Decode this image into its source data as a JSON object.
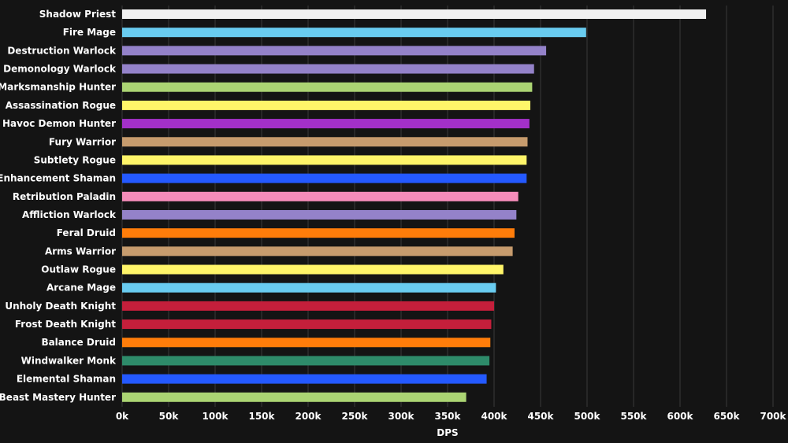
{
  "chart_data": {
    "type": "bar",
    "orientation": "horizontal",
    "title": "",
    "xlabel": "DPS",
    "ylabel": "",
    "xlim": [
      0,
      700000
    ],
    "grid": true,
    "legend": "none",
    "x_ticks": [
      "0k",
      "50k",
      "100k",
      "150k",
      "200k",
      "250k",
      "300k",
      "350k",
      "400k",
      "450k",
      "500k",
      "550k",
      "600k",
      "650k",
      "700k"
    ],
    "categories": [
      "Shadow Priest",
      "Fire Mage",
      "Destruction Warlock",
      "Demonology Warlock",
      "Marksmanship Hunter",
      "Assassination Rogue",
      "Havoc Demon Hunter",
      "Fury Warrior",
      "Subtlety Rogue",
      "Enhancement Shaman",
      "Retribution Paladin",
      "Affliction Warlock",
      "Feral Druid",
      "Arms Warrior",
      "Outlaw Rogue",
      "Arcane Mage",
      "Unholy Death Knight",
      "Frost Death Knight",
      "Balance Druid",
      "Windwalker Monk",
      "Elemental Shaman",
      "Beast Mastery Hunter"
    ],
    "values": [
      628000,
      499000,
      456000,
      443000,
      441000,
      439000,
      438000,
      436000,
      435000,
      435000,
      426000,
      424000,
      422000,
      420000,
      410000,
      402000,
      400000,
      397000,
      396000,
      395000,
      392000,
      370000
    ],
    "colors": [
      "#F0F0F0",
      "#69CCF0",
      "#9482C9",
      "#9482C9",
      "#ABD473",
      "#FFF569",
      "#A330C9",
      "#C79C6E",
      "#FFF569",
      "#2459FF",
      "#F58CBA",
      "#9482C9",
      "#FF7D0A",
      "#C79C6E",
      "#FFF569",
      "#69CCF0",
      "#C41F3B",
      "#C41F3B",
      "#FF7D0A",
      "#2E8B6A",
      "#2459FF",
      "#ABD473"
    ]
  }
}
